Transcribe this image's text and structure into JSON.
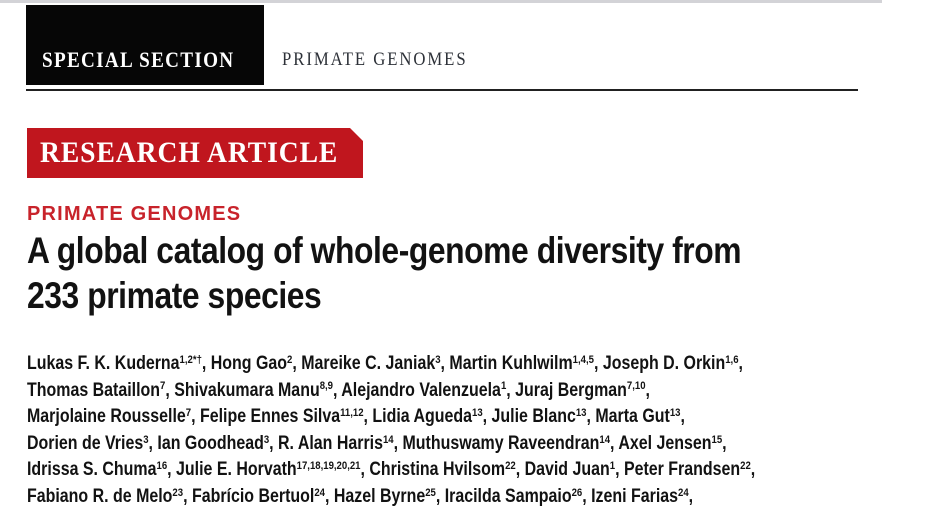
{
  "header": {
    "special_section_label": "SPECIAL SECTION",
    "topic": "PRIMATE GENOMES"
  },
  "article": {
    "banner_label": "RESEARCH ARTICLE",
    "section_label": "PRIMATE GENOMES",
    "title_lines": [
      "A global catalog of whole-genome diversity from",
      "233 primate species"
    ]
  },
  "authors": {
    "separator": ", ",
    "terminator": ",",
    "lines": [
      [
        {
          "name": "Lukas F. K. Kuderna",
          "sup": "1,2*†"
        },
        {
          "name": "Hong Gao",
          "sup": "2"
        },
        {
          "name": "Mareike C. Janiak",
          "sup": "3"
        },
        {
          "name": "Martin Kuhlwilm",
          "sup": "1,4,5"
        },
        {
          "name": "Joseph D. Orkin",
          "sup": "1,6"
        }
      ],
      [
        {
          "name": "Thomas Bataillon",
          "sup": "7"
        },
        {
          "name": "Shivakumara Manu",
          "sup": "8,9"
        },
        {
          "name": "Alejandro Valenzuela",
          "sup": "1"
        },
        {
          "name": "Juraj Bergman",
          "sup": "7,10"
        }
      ],
      [
        {
          "name": "Marjolaine Rousselle",
          "sup": "7"
        },
        {
          "name": "Felipe Ennes Silva",
          "sup": "11,12"
        },
        {
          "name": "Lidia Agueda",
          "sup": "13"
        },
        {
          "name": "Julie Blanc",
          "sup": "13"
        },
        {
          "name": "Marta Gut",
          "sup": "13"
        }
      ],
      [
        {
          "name": "Dorien de Vries",
          "sup": "3"
        },
        {
          "name": "Ian Goodhead",
          "sup": "3"
        },
        {
          "name": "R. Alan Harris",
          "sup": "14"
        },
        {
          "name": "Muthuswamy Raveendran",
          "sup": "14"
        },
        {
          "name": "Axel Jensen",
          "sup": "15"
        }
      ],
      [
        {
          "name": "Idrissa S. Chuma",
          "sup": "16"
        },
        {
          "name": "Julie E. Horvath",
          "sup": "17,18,19,20,21"
        },
        {
          "name": "Christina Hvilsom",
          "sup": "22"
        },
        {
          "name": "David Juan",
          "sup": "1"
        },
        {
          "name": "Peter Frandsen",
          "sup": "22"
        }
      ],
      [
        {
          "name": "Fabiano R. de Melo",
          "sup": "23"
        },
        {
          "name": "Fabrício Bertuol",
          "sup": "24"
        },
        {
          "name": "Hazel Byrne",
          "sup": "25"
        },
        {
          "name": "Iracilda Sampaio",
          "sup": "26"
        },
        {
          "name": "Izeni Farias",
          "sup": "24"
        }
      ]
    ]
  },
  "colors": {
    "banner_red": "#c0161e",
    "section_label_red": "#c8232b",
    "badge_black": "#060606",
    "rule_black": "#212121",
    "page_edge_gray": "#d3d3d7",
    "text_black": "#121212",
    "topic_dark": "#2d3138"
  }
}
